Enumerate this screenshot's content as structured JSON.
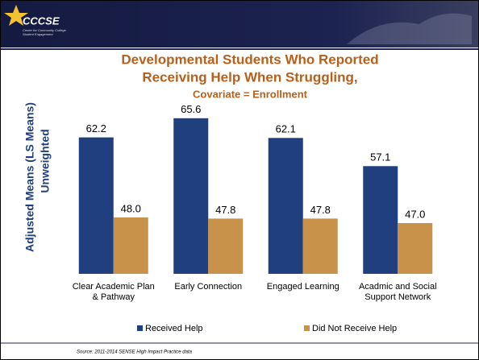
{
  "header": {
    "logo": "CCCSE",
    "tagline": [
      "Center for Community College",
      "Student Engagement"
    ]
  },
  "chart_data": {
    "type": "bar",
    "title": [
      "Developmental Students Who Reported",
      "Receiving Help When Struggling,"
    ],
    "subtitle": "Covariate = Enrollment",
    "ylabel": [
      "Adjusted Means (LS Means)",
      "Unweighted"
    ],
    "categories": [
      "Clear Academic Plan & Pathway",
      "Early Connection",
      "Engaged Learning",
      "Acadmic and Social Support Network"
    ],
    "series": [
      {
        "name": "Received Help",
        "color": "#1f3f7f",
        "values": [
          62.2,
          65.6,
          62.1,
          57.1
        ]
      },
      {
        "name": "Did Not Receive Help",
        "color": "#c9924a",
        "values": [
          48.0,
          47.8,
          47.8,
          47.0
        ],
        "value_labels": [
          "48.0",
          "47.8",
          "47.8",
          "47.0"
        ]
      }
    ],
    "ylim": [
      38,
      70
    ],
    "grid": false,
    "legend": "bottom"
  },
  "source": "Source: 2011-2014 SENSE High Impact Practice data"
}
